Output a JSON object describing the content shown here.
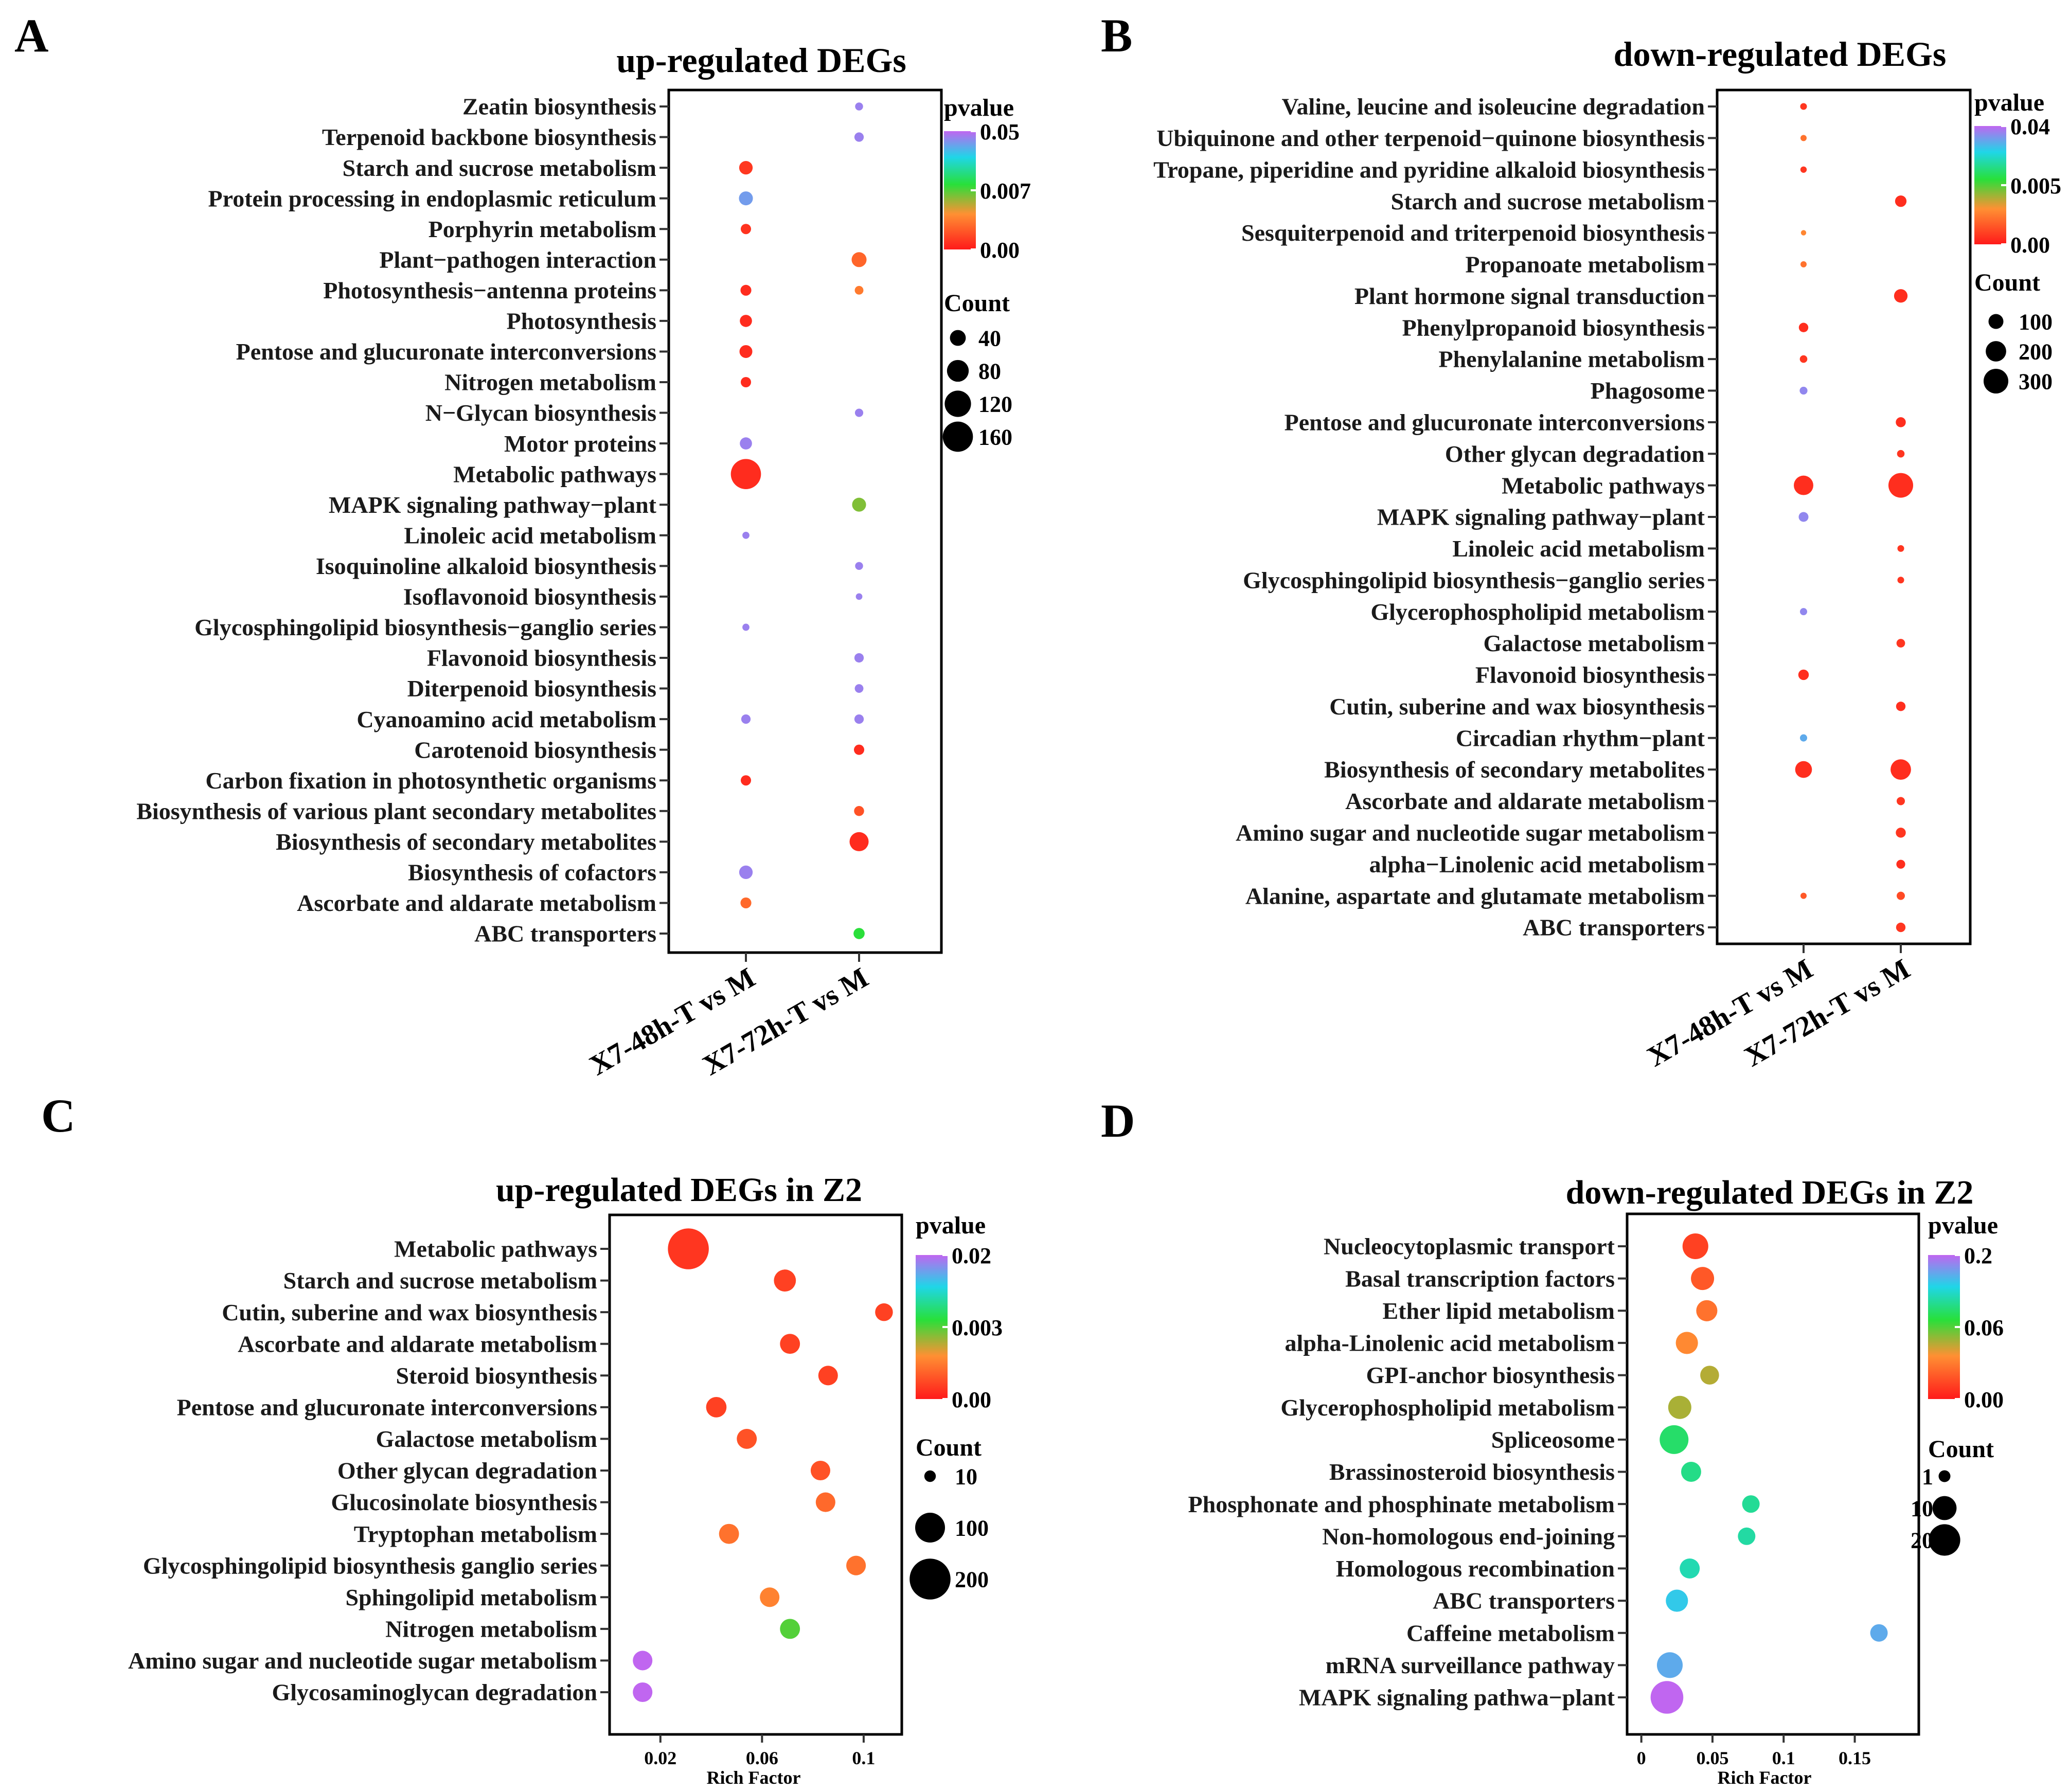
{
  "figure": {
    "panel_letters": [
      "A",
      "B",
      "C",
      "D"
    ]
  },
  "colors": {
    "pvalue_gradient": [
      "#ff1a1a",
      "#ff9033",
      "#28e03a",
      "#1fd6e8",
      "#c066f0"
    ]
  },
  "chart_data": [
    {
      "type": "scatter",
      "panel": "A",
      "title": "up-regulated DEGs",
      "x_categories": [
        "X7-48h-T vs M",
        "X7-72h-T vs M"
      ],
      "terms": [
        "Zeatin biosynthesis",
        "Terpenoid backbone biosynthesis",
        "Starch and sucrose metabolism",
        "Protein processing in endoplasmic reticulum",
        "Porphyrin metabolism",
        "Plant−pathogen interaction",
        "Photosynthesis−antenna proteins",
        "Photosynthesis",
        "Pentose and glucuronate interconversions",
        "Nitrogen metabolism",
        "N−Glycan biosynthesis",
        "Motor proteins",
        "Metabolic pathways",
        "MAPK signaling pathway−plant",
        "Linoleic acid metabolism",
        "Isoquinoline alkaloid biosynthesis",
        "Isoflavonoid biosynthesis",
        "Glycosphingolipid biosynthesis−ganglio series",
        "Flavonoid biosynthesis",
        "Diterpenoid biosynthesis",
        "Cyanoamino acid metabolism",
        "Carotenoid biosynthesis",
        "Carbon fixation in photosynthetic organisms",
        "Biosynthesis of various plant secondary metabolites",
        "Biosynthesis of secondary metabolites",
        "Biosynthesis of cofactors",
        "Ascorbate and aldarate metabolism",
        "ABC transporters"
      ],
      "points": [
        {
          "term": "Zeatin biosynthesis",
          "group": "X7-72h-T vs M",
          "count": 8,
          "pvalue": 0.045
        },
        {
          "term": "Terpenoid backbone biosynthesis",
          "group": "X7-72h-T vs M",
          "count": 12,
          "pvalue": 0.045
        },
        {
          "term": "Starch and sucrose metabolism",
          "group": "X7-48h-T vs M",
          "count": 28,
          "pvalue": 0.0003
        },
        {
          "term": "Protein processing in endoplasmic reticulum",
          "group": "X7-48h-T vs M",
          "count": 30,
          "pvalue": 0.04
        },
        {
          "term": "Porphyrin metabolism",
          "group": "X7-48h-T vs M",
          "count": 15,
          "pvalue": 0.0002
        },
        {
          "term": "Plant−pathogen interaction",
          "group": "X7-72h-T vs M",
          "count": 35,
          "pvalue": 0.0018
        },
        {
          "term": "Photosynthesis−antenna proteins",
          "group": "X7-48h-T vs M",
          "count": 17,
          "pvalue": 0.0001
        },
        {
          "term": "Photosynthesis−antenna proteins",
          "group": "X7-72h-T vs M",
          "count": 10,
          "pvalue": 0.003
        },
        {
          "term": "Photosynthesis",
          "group": "X7-48h-T vs M",
          "count": 22,
          "pvalue": 0.0001
        },
        {
          "term": "Pentose and glucuronate interconversions",
          "group": "X7-48h-T vs M",
          "count": 25,
          "pvalue": 0.0001
        },
        {
          "term": "Nitrogen metabolism",
          "group": "X7-48h-T vs M",
          "count": 15,
          "pvalue": 0.0001
        },
        {
          "term": "N−Glycan biosynthesis",
          "group": "X7-72h-T vs M",
          "count": 9,
          "pvalue": 0.045
        },
        {
          "term": "Motor proteins",
          "group": "X7-48h-T vs M",
          "count": 22,
          "pvalue": 0.045
        },
        {
          "term": "Metabolic pathways",
          "group": "X7-48h-T vs M",
          "count": 160,
          "pvalue": 0.0001
        },
        {
          "term": "MAPK signaling pathway−plant",
          "group": "X7-72h-T vs M",
          "count": 30,
          "pvalue": 0.01
        },
        {
          "term": "Linoleic acid metabolism",
          "group": "X7-48h-T vs M",
          "count": 6,
          "pvalue": 0.045
        },
        {
          "term": "Isoquinoline alkaloid biosynthesis",
          "group": "X7-72h-T vs M",
          "count": 8,
          "pvalue": 0.045
        },
        {
          "term": "Isoflavonoid biosynthesis",
          "group": "X7-72h-T vs M",
          "count": 5,
          "pvalue": 0.045
        },
        {
          "term": "Glycosphingolipid biosynthesis−ganglio series",
          "group": "X7-48h-T vs M",
          "count": 6,
          "pvalue": 0.045
        },
        {
          "term": "Flavonoid biosynthesis",
          "group": "X7-72h-T vs M",
          "count": 12,
          "pvalue": 0.045
        },
        {
          "term": "Diterpenoid biosynthesis",
          "group": "X7-72h-T vs M",
          "count": 10,
          "pvalue": 0.045
        },
        {
          "term": "Cyanoamino acid metabolism",
          "group": "X7-48h-T vs M",
          "count": 12,
          "pvalue": 0.045
        },
        {
          "term": "Cyanoamino acid metabolism",
          "group": "X7-72h-T vs M",
          "count": 12,
          "pvalue": 0.045
        },
        {
          "term": "Carotenoid biosynthesis",
          "group": "X7-72h-T vs M",
          "count": 15,
          "pvalue": 0.0001
        },
        {
          "term": "Carbon fixation in photosynthetic organisms",
          "group": "X7-48h-T vs M",
          "count": 15,
          "pvalue": 0.0001
        },
        {
          "term": "Biosynthesis of various plant secondary metabolites",
          "group": "X7-72h-T vs M",
          "count": 14,
          "pvalue": 0.001
        },
        {
          "term": "Biosynthesis of secondary metabolites",
          "group": "X7-72h-T vs M",
          "count": 60,
          "pvalue": 0.0001
        },
        {
          "term": "Biosynthesis of cofactors",
          "group": "X7-48h-T vs M",
          "count": 28,
          "pvalue": 0.045
        },
        {
          "term": "Ascorbate and aldarate metabolism",
          "group": "X7-48h-T vs M",
          "count": 17,
          "pvalue": 0.002
        },
        {
          "term": "ABC transporters",
          "group": "X7-72h-T vs M",
          "count": 18,
          "pvalue": 0.015
        }
      ],
      "legend": {
        "color_title": "pvalue",
        "color_ticks": [
          "0.05",
          "0.007",
          "0.00"
        ],
        "size_title": "Count",
        "size_ticks": [
          40,
          80,
          120,
          160
        ]
      }
    },
    {
      "type": "scatter",
      "panel": "B",
      "title": "down-regulated DEGs",
      "x_categories": [
        "X7-48h-T vs M",
        "X7-72h-T vs M"
      ],
      "terms": [
        "Valine, leucine and isoleucine degradation",
        "Ubiquinone and other terpenoid−quinone biosynthesis",
        "Tropane, piperidine and pyridine alkaloid biosynthesis",
        "Starch and sucrose metabolism",
        "Sesquiterpenoid and triterpenoid biosynthesis",
        "Propanoate metabolism",
        "Plant hormone signal transduction",
        "Phenylpropanoid biosynthesis",
        "Phenylalanine metabolism",
        "Phagosome",
        "Pentose and glucuronate interconversions",
        "Other glycan degradation",
        "Metabolic pathways",
        "MAPK signaling pathway−plant",
        "Linoleic acid metabolism",
        "Glycosphingolipid biosynthesis−ganglio series",
        "Glycerophospholipid metabolism",
        "Galactose metabolism",
        "Flavonoid biosynthesis",
        "Cutin, suberine and wax biosynthesis",
        "Circadian rhythm−plant",
        "Biosynthesis of secondary metabolites",
        "Ascorbate and aldarate metabolism",
        "Amino sugar and nucleotide sugar metabolism",
        "alpha−Linolenic acid metabolism",
        "Alanine, aspartate and glutamate metabolism",
        "ABC transporters"
      ],
      "points": [
        {
          "term": "Valine, leucine and isoleucine degradation",
          "group": "X7-48h-T vs M",
          "count": 15,
          "pvalue": 0.0002
        },
        {
          "term": "Ubiquinone and other terpenoid−quinone biosynthesis",
          "group": "X7-48h-T vs M",
          "count": 12,
          "pvalue": 0.002
        },
        {
          "term": "Tropane, piperidine and pyridine alkaloid biosynthesis",
          "group": "X7-48h-T vs M",
          "count": 13,
          "pvalue": 0.0002
        },
        {
          "term": "Starch and sucrose metabolism",
          "group": "X7-72h-T vs M",
          "count": 55,
          "pvalue": 0.0001
        },
        {
          "term": "Sesquiterpenoid and triterpenoid biosynthesis",
          "group": "X7-48h-T vs M",
          "count": 8,
          "pvalue": 0.003
        },
        {
          "term": "Propanoate metabolism",
          "group": "X7-48h-T vs M",
          "count": 12,
          "pvalue": 0.002
        },
        {
          "term": "Plant hormone signal transduction",
          "group": "X7-72h-T vs M",
          "count": 80,
          "pvalue": 0.0001
        },
        {
          "term": "Phenylpropanoid biosynthesis",
          "group": "X7-48h-T vs M",
          "count": 35,
          "pvalue": 0.0001
        },
        {
          "term": "Phenylalanine metabolism",
          "group": "X7-48h-T vs M",
          "count": 20,
          "pvalue": 0.0002
        },
        {
          "term": "Phagosome",
          "group": "X7-48h-T vs M",
          "count": 22,
          "pvalue": 0.035
        },
        {
          "term": "Pentose and glucuronate interconversions",
          "group": "X7-72h-T vs M",
          "count": 40,
          "pvalue": 0.0001
        },
        {
          "term": "Other glycan degradation",
          "group": "X7-72h-T vs M",
          "count": 20,
          "pvalue": 0.0002
        },
        {
          "term": "Metabolic pathways",
          "group": "X7-48h-T vs M",
          "count": 180,
          "pvalue": 0.0001
        },
        {
          "term": "Metabolic pathways",
          "group": "X7-72h-T vs M",
          "count": 300,
          "pvalue": 0.0001
        },
        {
          "term": "MAPK signaling pathway−plant",
          "group": "X7-48h-T vs M",
          "count": 38,
          "pvalue": 0.035
        },
        {
          "term": "Linoleic acid metabolism",
          "group": "X7-72h-T vs M",
          "count": 15,
          "pvalue": 0.0002
        },
        {
          "term": "Glycosphingolipid biosynthesis−ganglio series",
          "group": "X7-72h-T vs M",
          "count": 15,
          "pvalue": 0.0002
        },
        {
          "term": "Glycerophospholipid metabolism",
          "group": "X7-48h-T vs M",
          "count": 18,
          "pvalue": 0.035
        },
        {
          "term": "Galactose metabolism",
          "group": "X7-72h-T vs M",
          "count": 28,
          "pvalue": 0.0002
        },
        {
          "term": "Flavonoid biosynthesis",
          "group": "X7-48h-T vs M",
          "count": 45,
          "pvalue": 0.0001
        },
        {
          "term": "Cutin, suberine and wax biosynthesis",
          "group": "X7-72h-T vs M",
          "count": 35,
          "pvalue": 0.0001
        },
        {
          "term": "Circadian rhythm−plant",
          "group": "X7-48h-T vs M",
          "count": 18,
          "pvalue": 0.03
        },
        {
          "term": "Biosynthesis of secondary metabolites",
          "group": "X7-48h-T vs M",
          "count": 130,
          "pvalue": 0.0001
        },
        {
          "term": "Biosynthesis of secondary metabolites",
          "group": "X7-72h-T vs M",
          "count": 200,
          "pvalue": 0.0001
        },
        {
          "term": "Ascorbate and aldarate metabolism",
          "group": "X7-72h-T vs M",
          "count": 25,
          "pvalue": 0.0002
        },
        {
          "term": "Amino sugar and nucleotide sugar metabolism",
          "group": "X7-72h-T vs M",
          "count": 40,
          "pvalue": 0.0002
        },
        {
          "term": "alpha−Linolenic acid metabolism",
          "group": "X7-72h-T vs M",
          "count": 30,
          "pvalue": 0.0001
        },
        {
          "term": "Alanine, aspartate and glutamate metabolism",
          "group": "X7-48h-T vs M",
          "count": 12,
          "pvalue": 0.001
        },
        {
          "term": "Alanine, aspartate and glutamate metabolism",
          "group": "X7-72h-T vs M",
          "count": 25,
          "pvalue": 0.0006
        },
        {
          "term": "ABC transporters",
          "group": "X7-72h-T vs M",
          "count": 35,
          "pvalue": 0.0002
        }
      ],
      "legend": {
        "color_title": "pvalue",
        "color_ticks": [
          "0.04",
          "0.005",
          "0.00"
        ],
        "size_title": "Count",
        "size_ticks": [
          100,
          200,
          300
        ]
      }
    },
    {
      "type": "scatter",
      "panel": "C",
      "title": "up-regulated DEGs in Z2",
      "xlabel": "Rich Factor",
      "x_ticks": [
        "0.02",
        "0.06",
        "0.1"
      ],
      "xlim": [
        0,
        0.115
      ],
      "terms": [
        "Metabolic pathways",
        "Starch  and  sucrose  metabolism",
        "Cutin,  suberine  and  wax  biosynthesis",
        "Ascorbate  and  aldarate  metabolism",
        "Steroid  biosynthesis",
        "Pentose  and  glucuronate  interconversions",
        "Galactose  metabolism",
        "Other  glycan  degradation",
        "Glucosinolate  biosynthesis",
        "Tryptophan  metabolism",
        "Glycosphingolipid  biosynthesis  ganglio  series",
        "Sphingolipid  metabolism",
        "Nitrogen  metabolism",
        "Amino  sugar  and  nucleotide  sugar  metabolism",
        "Glycosaminoglycan  degradation"
      ],
      "points": [
        {
          "term": "Metabolic pathways",
          "x": 0.031,
          "count": 200,
          "pvalue": 0.0001
        },
        {
          "term": "Starch  and  sucrose  metabolism",
          "x": 0.069,
          "count": 50,
          "pvalue": 0.0002
        },
        {
          "term": "Cutin,  suberine  and  wax  biosynthesis",
          "x": 0.108,
          "count": 30,
          "pvalue": 0.0002
        },
        {
          "term": "Ascorbate  and  aldarate  metabolism",
          "x": 0.071,
          "count": 40,
          "pvalue": 0.0002
        },
        {
          "term": "Steroid  biosynthesis",
          "x": 0.086,
          "count": 38,
          "pvalue": 0.0002
        },
        {
          "term": "Pentose  and  glucuronate  interconversions",
          "x": 0.042,
          "count": 42,
          "pvalue": 0.0002
        },
        {
          "term": "Galactose  metabolism",
          "x": 0.054,
          "count": 40,
          "pvalue": 0.0004
        },
        {
          "term": "Other  glycan  degradation",
          "x": 0.083,
          "count": 38,
          "pvalue": 0.0004
        },
        {
          "term": "Glucosinolate  biosynthesis",
          "x": 0.085,
          "count": 38,
          "pvalue": 0.0008
        },
        {
          "term": "Tryptophan  metabolism",
          "x": 0.047,
          "count": 40,
          "pvalue": 0.001
        },
        {
          "term": "Glycosphingolipid  biosynthesis  ganglio  series",
          "x": 0.097,
          "count": 38,
          "pvalue": 0.001
        },
        {
          "term": "Sphingolipid  metabolism",
          "x": 0.063,
          "count": 38,
          "pvalue": 0.0014
        },
        {
          "term": "Nitrogen  metabolism",
          "x": 0.071,
          "count": 40,
          "pvalue": 0.005
        },
        {
          "term": "Amino  sugar  and  nucleotide  sugar  metabolism",
          "x": 0.013,
          "count": 38,
          "pvalue": 0.02
        },
        {
          "term": "Glycosaminoglycan  degradation",
          "x": 0.013,
          "count": 38,
          "pvalue": 0.02
        }
      ],
      "legend": {
        "color_title": "pvalue",
        "color_ticks": [
          "0.02",
          "0.003",
          "0.00"
        ],
        "size_title": "Count",
        "size_ticks": [
          10,
          100,
          200
        ]
      }
    },
    {
      "type": "scatter",
      "panel": "D",
      "title": "down-regulated DEGs in Z2",
      "xlabel": "Rich Factor",
      "x_ticks": [
        "0",
        "0.05",
        "0.1",
        "0.15"
      ],
      "xlim": [
        -0.01,
        0.195
      ],
      "terms": [
        "Nucleocytoplasmic  transport",
        "Basal  transcription  factors",
        "Ether  lipid  metabolism",
        "alpha-Linolenic  acid  metabolism",
        "GPI-anchor  biosynthesis",
        "Glycerophospholipid  metabolism",
        "Spliceosome",
        "Brassinosteroid  biosynthesis",
        "Phosphonate  and  phosphinate  metabolism",
        "Non-homologous  end-joining",
        "Homologous  recombination",
        "ABC  transporters",
        "Caffeine  metabolism",
        "mRNA  surveillance  pathway",
        "MAPK  signaling  pathwa−plant"
      ],
      "points": [
        {
          "term": "Nucleocytoplasmic  transport",
          "x": 0.038,
          "count": 12,
          "pvalue": 0.002
        },
        {
          "term": "Basal  transcription  factors",
          "x": 0.043,
          "count": 9,
          "pvalue": 0.005
        },
        {
          "term": "Ether  lipid  metabolism",
          "x": 0.046,
          "count": 7,
          "pvalue": 0.01
        },
        {
          "term": "alpha-Linolenic  acid  metabolism",
          "x": 0.032,
          "count": 8,
          "pvalue": 0.016
        },
        {
          "term": "GPI-anchor  biosynthesis",
          "x": 0.048,
          "count": 5,
          "pvalue": 0.03
        },
        {
          "term": "Glycerophospholipid  metabolism",
          "x": 0.027,
          "count": 9,
          "pvalue": 0.032
        },
        {
          "term": "Spliceosome",
          "x": 0.023,
          "count": 16,
          "pvalue": 0.075
        },
        {
          "term": "Brassinosteroid  biosynthesis",
          "x": 0.035,
          "count": 6,
          "pvalue": 0.085
        },
        {
          "term": "Phosphonate  and  phosphinate  metabolism",
          "x": 0.077,
          "count": 4,
          "pvalue": 0.09
        },
        {
          "term": "Non-homologous  end-joining",
          "x": 0.074,
          "count": 4,
          "pvalue": 0.095
        },
        {
          "term": "Homologous  recombination",
          "x": 0.034,
          "count": 6,
          "pvalue": 0.1
        },
        {
          "term": "ABC  transporters",
          "x": 0.025,
          "count": 8,
          "pvalue": 0.13
        },
        {
          "term": "Caffeine  metabolism",
          "x": 0.167,
          "count": 4,
          "pvalue": 0.15
        },
        {
          "term": "mRNA  surveillance  pathway",
          "x": 0.02,
          "count": 12,
          "pvalue": 0.15
        },
        {
          "term": "MAPK  signaling  pathwa−plant",
          "x": 0.018,
          "count": 22,
          "pvalue": 0.2
        }
      ],
      "legend": {
        "color_title": "pvalue",
        "color_ticks": [
          "0.2",
          "0.06",
          "0.00"
        ],
        "size_title": "Count",
        "size_ticks": [
          1,
          10,
          20
        ]
      }
    }
  ]
}
